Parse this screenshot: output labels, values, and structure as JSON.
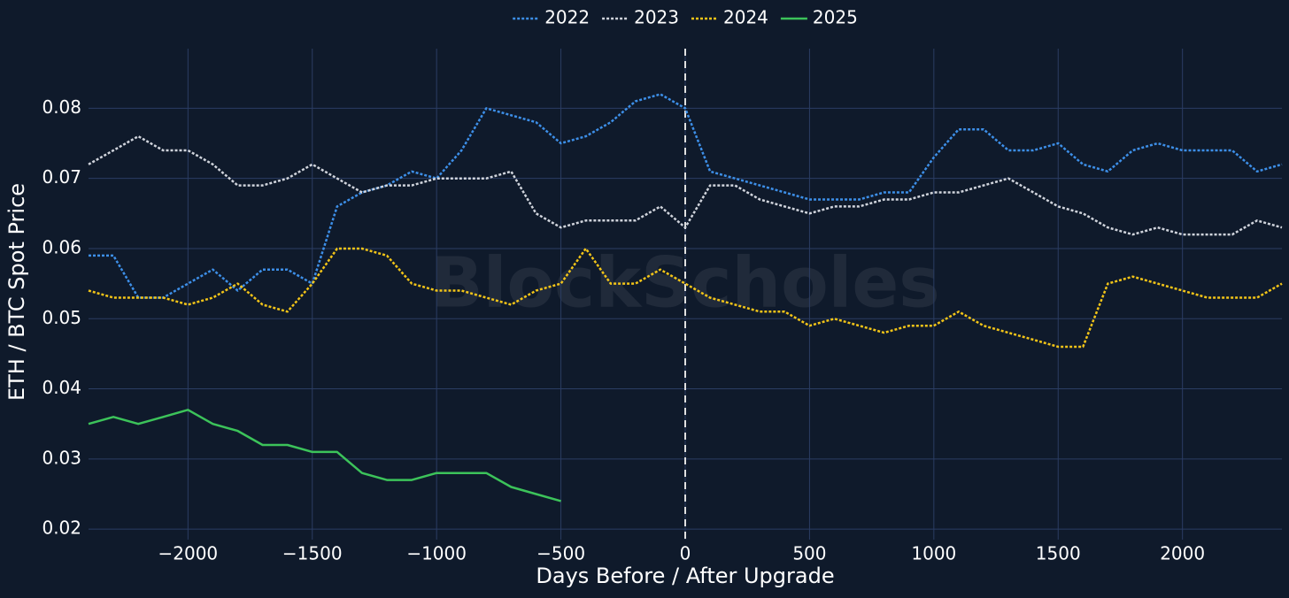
{
  "chart_data": {
    "type": "line",
    "x_label": "Days Before / After Upgrade",
    "y_label": "ETH / BTC Spot Price",
    "watermark": "BlockScholes",
    "xlim": [
      -2400,
      2400
    ],
    "ylim": [
      0.0185,
      0.0885
    ],
    "xticks": [
      {
        "value": -2000,
        "label": "−2000"
      },
      {
        "value": -1500,
        "label": "−1500"
      },
      {
        "value": -1000,
        "label": "−1000"
      },
      {
        "value": -500,
        "label": "−500"
      },
      0,
      500,
      1000,
      1500,
      2000
    ],
    "yticks": [
      0.02,
      0.03,
      0.04,
      0.05,
      0.06,
      0.07,
      0.08
    ],
    "grid": true,
    "vline": 0,
    "legend": "top",
    "x": [
      -2400,
      -2300,
      -2200,
      -2100,
      -2000,
      -1900,
      -1800,
      -1700,
      -1600,
      -1500,
      -1400,
      -1300,
      -1200,
      -1100,
      -1000,
      -900,
      -800,
      -700,
      -600,
      -500,
      -400,
      -300,
      -200,
      -100,
      0,
      100,
      200,
      300,
      400,
      500,
      600,
      700,
      800,
      900,
      1000,
      1100,
      1200,
      1300,
      1400,
      1500,
      1600,
      1700,
      1800,
      1900,
      2000,
      2100,
      2200,
      2300,
      2400
    ],
    "series": [
      {
        "name": "2022",
        "color": "#3d8fe8",
        "dash": true,
        "values": [
          0.059,
          0.059,
          0.053,
          0.053,
          0.055,
          0.057,
          0.054,
          0.057,
          0.057,
          0.055,
          0.066,
          0.068,
          0.069,
          0.071,
          0.07,
          0.074,
          0.08,
          0.079,
          0.078,
          0.075,
          0.076,
          0.078,
          0.081,
          0.082,
          0.08,
          0.071,
          0.07,
          0.069,
          0.068,
          0.067,
          0.067,
          0.067,
          0.068,
          0.068,
          0.073,
          0.077,
          0.077,
          0.074,
          0.074,
          0.075,
          0.072,
          0.071,
          0.074,
          0.075,
          0.074,
          0.074,
          0.074,
          0.071,
          0.072
        ]
      },
      {
        "name": "2023",
        "color": "#d0d4dc",
        "dash": true,
        "values": [
          0.072,
          0.074,
          0.076,
          0.074,
          0.074,
          0.072,
          0.069,
          0.069,
          0.07,
          0.072,
          0.07,
          0.068,
          0.069,
          0.069,
          0.07,
          0.07,
          0.07,
          0.071,
          0.065,
          0.063,
          0.064,
          0.064,
          0.064,
          0.066,
          0.063,
          0.069,
          0.069,
          0.067,
          0.066,
          0.065,
          0.066,
          0.066,
          0.067,
          0.067,
          0.068,
          0.068,
          0.069,
          0.07,
          0.068,
          0.066,
          0.065,
          0.063,
          0.062,
          0.063,
          0.062,
          0.062,
          0.062,
          0.064,
          0.063
        ]
      },
      {
        "name": "2024",
        "color": "#f2c418",
        "dash": true,
        "values": [
          0.054,
          0.053,
          0.053,
          0.053,
          0.052,
          0.053,
          0.055,
          0.052,
          0.051,
          0.055,
          0.06,
          0.06,
          0.059,
          0.055,
          0.054,
          0.054,
          0.053,
          0.052,
          0.054,
          0.055,
          0.06,
          0.055,
          0.055,
          0.057,
          0.055,
          0.053,
          0.052,
          0.051,
          0.051,
          0.049,
          0.05,
          0.049,
          0.048,
          0.049,
          0.049,
          0.051,
          0.049,
          0.048,
          0.047,
          0.046,
          0.046,
          0.055,
          0.056,
          0.055,
          0.054,
          0.053,
          0.053,
          0.053,
          0.055
        ]
      },
      {
        "name": "2025",
        "color": "#3cc35a",
        "dash": false,
        "values": [
          0.035,
          0.036,
          0.035,
          0.036,
          0.037,
          0.035,
          0.034,
          0.032,
          0.032,
          0.031,
          0.031,
          0.028,
          0.027,
          0.027,
          0.028,
          0.028,
          0.028,
          0.026,
          0.025,
          0.024,
          null,
          null,
          null,
          null,
          null,
          null,
          null,
          null,
          null,
          null,
          null,
          null,
          null,
          null,
          null,
          null,
          null,
          null,
          null,
          null,
          null,
          null,
          null,
          null,
          null,
          null,
          null,
          null,
          null
        ]
      }
    ]
  }
}
